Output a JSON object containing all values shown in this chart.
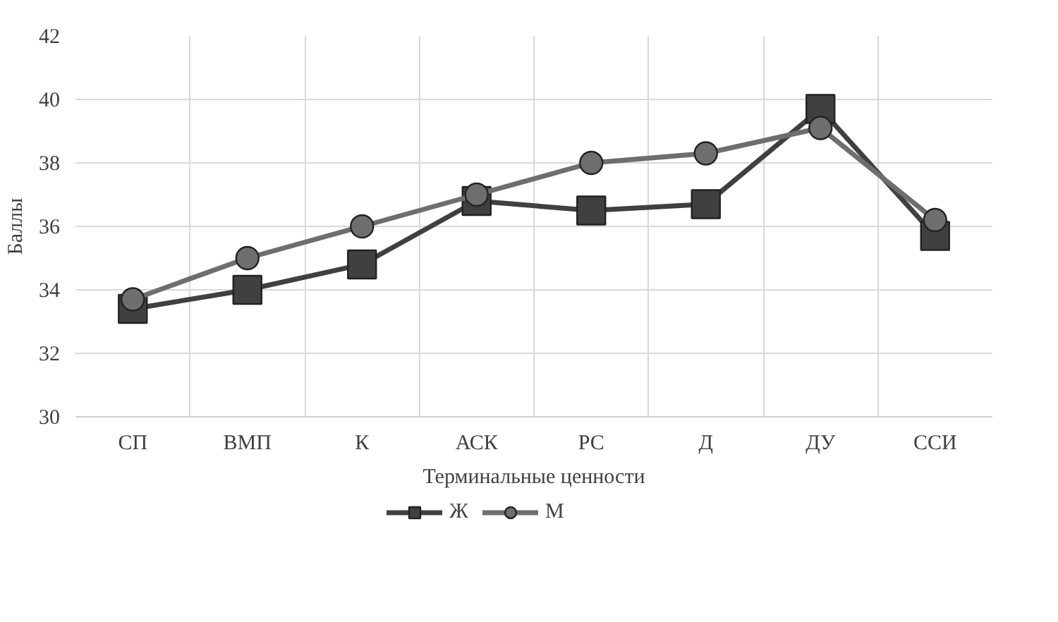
{
  "chart_data": {
    "type": "line",
    "xlabel": "Терминальные ценности",
    "ylabel": "Баллы",
    "categories": [
      "СП",
      "ВМП",
      "К",
      "АСК",
      "РС",
      "Д",
      "ДУ",
      "ССИ"
    ],
    "series": [
      {
        "name": "Ж",
        "color": "#404040",
        "marker": "square",
        "values": [
          33.4,
          34.0,
          34.8,
          36.8,
          36.5,
          36.7,
          39.7,
          35.7
        ]
      },
      {
        "name": "М",
        "color": "#6e6e6e",
        "marker": "circle",
        "values": [
          33.7,
          35.0,
          36.0,
          37.0,
          38.0,
          38.3,
          39.1,
          36.2
        ]
      }
    ],
    "ylim": [
      30,
      42
    ],
    "yticks": [
      30,
      32,
      34,
      36,
      38,
      40,
      42
    ],
    "grid": true,
    "legend": "bottom"
  }
}
